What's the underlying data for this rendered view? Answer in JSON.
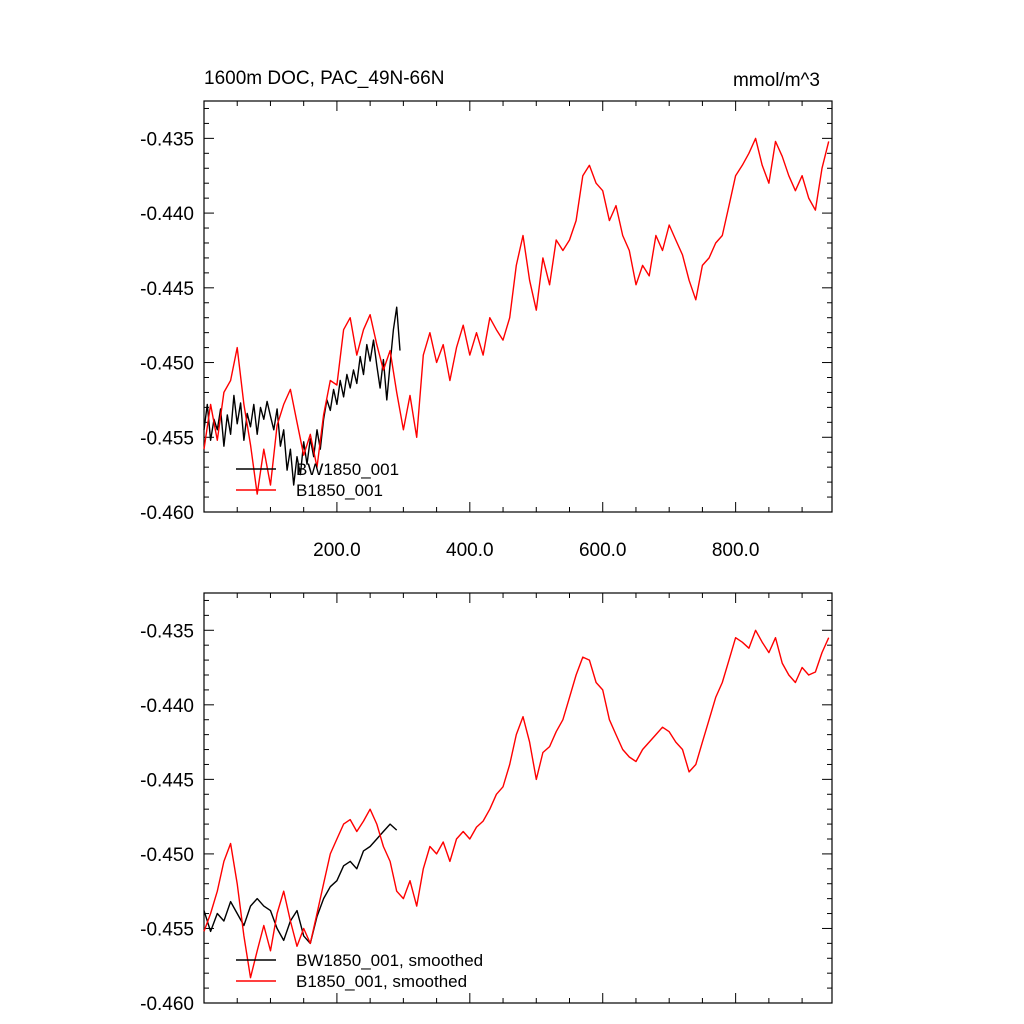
{
  "header": {
    "title": "1600m DOC, PAC_49N-66N",
    "units": "mmol/m^3"
  },
  "chart_data": [
    {
      "type": "line",
      "title": "1600m DOC, PAC_49N-66N",
      "units": "mmol/m^3",
      "xlabel": "",
      "ylabel": "",
      "xlim": [
        0,
        945
      ],
      "ylim": [
        -0.46,
        -0.4325
      ],
      "xticks": [
        200,
        400,
        600,
        800
      ],
      "xtick_labels": [
        "200.0",
        "400.0",
        "600.0",
        "800.0"
      ],
      "yticks": [
        -0.46,
        -0.455,
        -0.45,
        -0.445,
        -0.44,
        -0.435
      ],
      "ytick_labels": [
        "-0.460",
        "-0.455",
        "-0.450",
        "-0.445",
        "-0.440",
        "-0.435"
      ],
      "legend_position": "bottom-left",
      "series": [
        {
          "name": "BW1850_001",
          "color": "#000000",
          "x": [
            0,
            5,
            10,
            15,
            20,
            25,
            30,
            35,
            40,
            45,
            50,
            55,
            60,
            65,
            70,
            75,
            80,
            85,
            90,
            95,
            100,
            105,
            110,
            115,
            120,
            125,
            130,
            135,
            140,
            145,
            150,
            155,
            160,
            165,
            170,
            175,
            180,
            185,
            190,
            195,
            200,
            205,
            210,
            215,
            220,
            225,
            230,
            235,
            240,
            245,
            250,
            255,
            260,
            265,
            270,
            275,
            280,
            285,
            290,
            295
          ],
          "values": [
            -0.4545,
            -0.4528,
            -0.4552,
            -0.4538,
            -0.4545,
            -0.4531,
            -0.4556,
            -0.4535,
            -0.4548,
            -0.4522,
            -0.4541,
            -0.4527,
            -0.4552,
            -0.4534,
            -0.4543,
            -0.4528,
            -0.4548,
            -0.453,
            -0.4538,
            -0.4526,
            -0.4536,
            -0.4545,
            -0.4531,
            -0.4556,
            -0.4545,
            -0.4572,
            -0.4558,
            -0.4582,
            -0.4563,
            -0.4575,
            -0.4553,
            -0.4568,
            -0.4551,
            -0.4563,
            -0.4545,
            -0.4558,
            -0.4538,
            -0.4525,
            -0.4532,
            -0.4518,
            -0.4528,
            -0.4512,
            -0.4523,
            -0.4508,
            -0.4517,
            -0.4505,
            -0.4514,
            -0.4496,
            -0.4508,
            -0.4488,
            -0.4499,
            -0.4485,
            -0.4502,
            -0.4517,
            -0.4498,
            -0.4525,
            -0.4501,
            -0.4478,
            -0.4463,
            -0.4492
          ]
        },
        {
          "name": "B1850_001",
          "color": "#ff0000",
          "x": [
            0,
            10,
            20,
            30,
            40,
            50,
            60,
            70,
            80,
            90,
            100,
            110,
            120,
            130,
            140,
            150,
            160,
            170,
            180,
            190,
            200,
            210,
            220,
            230,
            240,
            250,
            260,
            270,
            280,
            290,
            300,
            310,
            320,
            330,
            340,
            350,
            360,
            370,
            380,
            390,
            400,
            410,
            420,
            430,
            440,
            450,
            460,
            470,
            480,
            490,
            500,
            510,
            520,
            530,
            540,
            550,
            560,
            570,
            580,
            590,
            600,
            610,
            620,
            630,
            640,
            650,
            660,
            670,
            680,
            690,
            700,
            710,
            720,
            730,
            740,
            750,
            760,
            770,
            780,
            790,
            800,
            810,
            820,
            830,
            840,
            850,
            860,
            870,
            880,
            890,
            900,
            910,
            920,
            930,
            940
          ],
          "values": [
            -0.4558,
            -0.4528,
            -0.4552,
            -0.452,
            -0.4512,
            -0.449,
            -0.4528,
            -0.4555,
            -0.4588,
            -0.4558,
            -0.4582,
            -0.4542,
            -0.4528,
            -0.4518,
            -0.454,
            -0.4562,
            -0.4548,
            -0.457,
            -0.4535,
            -0.4512,
            -0.4515,
            -0.4478,
            -0.447,
            -0.4495,
            -0.4478,
            -0.4468,
            -0.4488,
            -0.4505,
            -0.4492,
            -0.452,
            -0.4545,
            -0.4522,
            -0.455,
            -0.4495,
            -0.448,
            -0.45,
            -0.4488,
            -0.4512,
            -0.449,
            -0.4475,
            -0.4495,
            -0.448,
            -0.4495,
            -0.447,
            -0.4478,
            -0.4485,
            -0.447,
            -0.4435,
            -0.4415,
            -0.4445,
            -0.4465,
            -0.443,
            -0.4448,
            -0.4418,
            -0.4425,
            -0.4418,
            -0.4405,
            -0.4375,
            -0.4368,
            -0.438,
            -0.4385,
            -0.4405,
            -0.4395,
            -0.4415,
            -0.4425,
            -0.4448,
            -0.4435,
            -0.4442,
            -0.4415,
            -0.4425,
            -0.4408,
            -0.4418,
            -0.4428,
            -0.4445,
            -0.4458,
            -0.4435,
            -0.443,
            -0.442,
            -0.4415,
            -0.4395,
            -0.4375,
            -0.4368,
            -0.436,
            -0.435,
            -0.4368,
            -0.438,
            -0.4352,
            -0.4362,
            -0.4375,
            -0.4385,
            -0.4375,
            -0.439,
            -0.4398,
            -0.437,
            -0.4352
          ]
        }
      ]
    },
    {
      "type": "line",
      "title": "",
      "xlabel": "",
      "ylabel": "",
      "xlim": [
        0,
        945
      ],
      "ylim": [
        -0.46,
        -0.4325
      ],
      "yticks": [
        -0.46,
        -0.455,
        -0.45,
        -0.445,
        -0.44,
        -0.435
      ],
      "ytick_labels": [
        "-0.460",
        "-0.455",
        "-0.450",
        "-0.445",
        "-0.440",
        "-0.435"
      ],
      "legend_position": "bottom-left",
      "series": [
        {
          "name": "BW1850_001, smoothed",
          "color": "#000000",
          "x": [
            0,
            10,
            20,
            30,
            40,
            50,
            60,
            70,
            80,
            90,
            100,
            110,
            120,
            130,
            140,
            150,
            160,
            170,
            180,
            190,
            200,
            210,
            220,
            230,
            240,
            250,
            260,
            270,
            280,
            290
          ],
          "values": [
            -0.4538,
            -0.4552,
            -0.454,
            -0.4545,
            -0.4532,
            -0.454,
            -0.4548,
            -0.4535,
            -0.453,
            -0.4535,
            -0.4538,
            -0.455,
            -0.4558,
            -0.4545,
            -0.4538,
            -0.4555,
            -0.456,
            -0.4542,
            -0.453,
            -0.4522,
            -0.4518,
            -0.4508,
            -0.4505,
            -0.451,
            -0.4498,
            -0.4495,
            -0.449,
            -0.4485,
            -0.448,
            -0.4484
          ]
        },
        {
          "name": "B1850_001, smoothed",
          "color": "#ff0000",
          "x": [
            0,
            10,
            20,
            30,
            40,
            50,
            60,
            70,
            80,
            90,
            100,
            110,
            120,
            130,
            140,
            150,
            160,
            170,
            180,
            190,
            200,
            210,
            220,
            230,
            240,
            250,
            260,
            270,
            280,
            290,
            300,
            310,
            320,
            330,
            340,
            350,
            360,
            370,
            380,
            390,
            400,
            410,
            420,
            430,
            440,
            450,
            460,
            470,
            480,
            490,
            500,
            510,
            520,
            530,
            540,
            550,
            560,
            570,
            580,
            590,
            600,
            610,
            620,
            630,
            640,
            650,
            660,
            670,
            680,
            690,
            700,
            710,
            720,
            730,
            740,
            750,
            760,
            770,
            780,
            790,
            800,
            810,
            820,
            830,
            840,
            850,
            860,
            870,
            880,
            890,
            900,
            910,
            920,
            930,
            940
          ],
          "values": [
            -0.4552,
            -0.454,
            -0.4525,
            -0.4505,
            -0.4493,
            -0.452,
            -0.4555,
            -0.4583,
            -0.4565,
            -0.4548,
            -0.4565,
            -0.454,
            -0.4525,
            -0.4545,
            -0.4562,
            -0.455,
            -0.456,
            -0.454,
            -0.452,
            -0.45,
            -0.449,
            -0.448,
            -0.4477,
            -0.4485,
            -0.4478,
            -0.447,
            -0.448,
            -0.4495,
            -0.4505,
            -0.4525,
            -0.453,
            -0.4518,
            -0.4535,
            -0.451,
            -0.4495,
            -0.45,
            -0.4492,
            -0.4505,
            -0.449,
            -0.4485,
            -0.449,
            -0.4482,
            -0.4478,
            -0.447,
            -0.446,
            -0.4455,
            -0.444,
            -0.442,
            -0.4408,
            -0.4425,
            -0.445,
            -0.4432,
            -0.4428,
            -0.4418,
            -0.441,
            -0.4395,
            -0.438,
            -0.4368,
            -0.437,
            -0.4385,
            -0.439,
            -0.441,
            -0.442,
            -0.443,
            -0.4435,
            -0.4438,
            -0.443,
            -0.4425,
            -0.442,
            -0.4415,
            -0.4418,
            -0.4425,
            -0.443,
            -0.4445,
            -0.444,
            -0.4425,
            -0.441,
            -0.4395,
            -0.4385,
            -0.437,
            -0.4355,
            -0.4358,
            -0.4362,
            -0.435,
            -0.4358,
            -0.4365,
            -0.4355,
            -0.4372,
            -0.438,
            -0.4385,
            -0.4375,
            -0.438,
            -0.4378,
            -0.4365,
            -0.4355
          ]
        }
      ]
    }
  ]
}
